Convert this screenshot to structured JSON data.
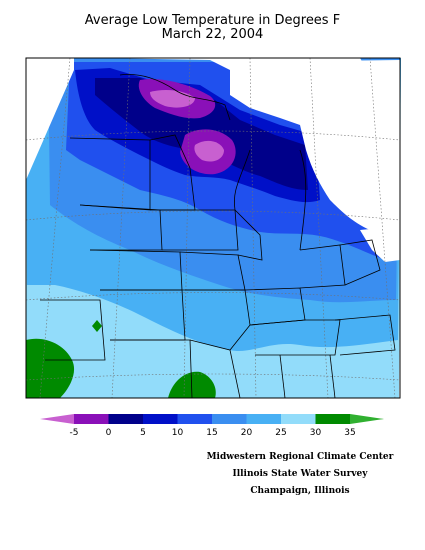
{
  "title": "Average Low Temperature in Degrees F",
  "date": "March 22, 2004",
  "legend": {
    "ticks": [
      "-5",
      "0",
      "5",
      "10",
      "15",
      "20",
      "25",
      "30",
      "35"
    ],
    "bins": [
      {
        "label": "below -5",
        "color": "#c860d0"
      },
      {
        "label": "-5 to 0",
        "color": "#8a10b8"
      },
      {
        "label": "0 to 5",
        "color": "#00008a"
      },
      {
        "label": "5 to 10",
        "color": "#0010c8"
      },
      {
        "label": "10 to 15",
        "color": "#2050ee"
      },
      {
        "label": "15 to 20",
        "color": "#3a8ef0"
      },
      {
        "label": "20 to 25",
        "color": "#48b0f4"
      },
      {
        "label": "25 to 30",
        "color": "#92dcfa"
      },
      {
        "label": "30 to 35",
        "color": "#008a00"
      },
      {
        "label": "above 35",
        "color": "#30b030"
      }
    ]
  },
  "credits": {
    "line1": "Midwestern Regional Climate Center",
    "line2": "Illinois State Water Survey",
    "line3": "Champaign, Illinois"
  }
}
